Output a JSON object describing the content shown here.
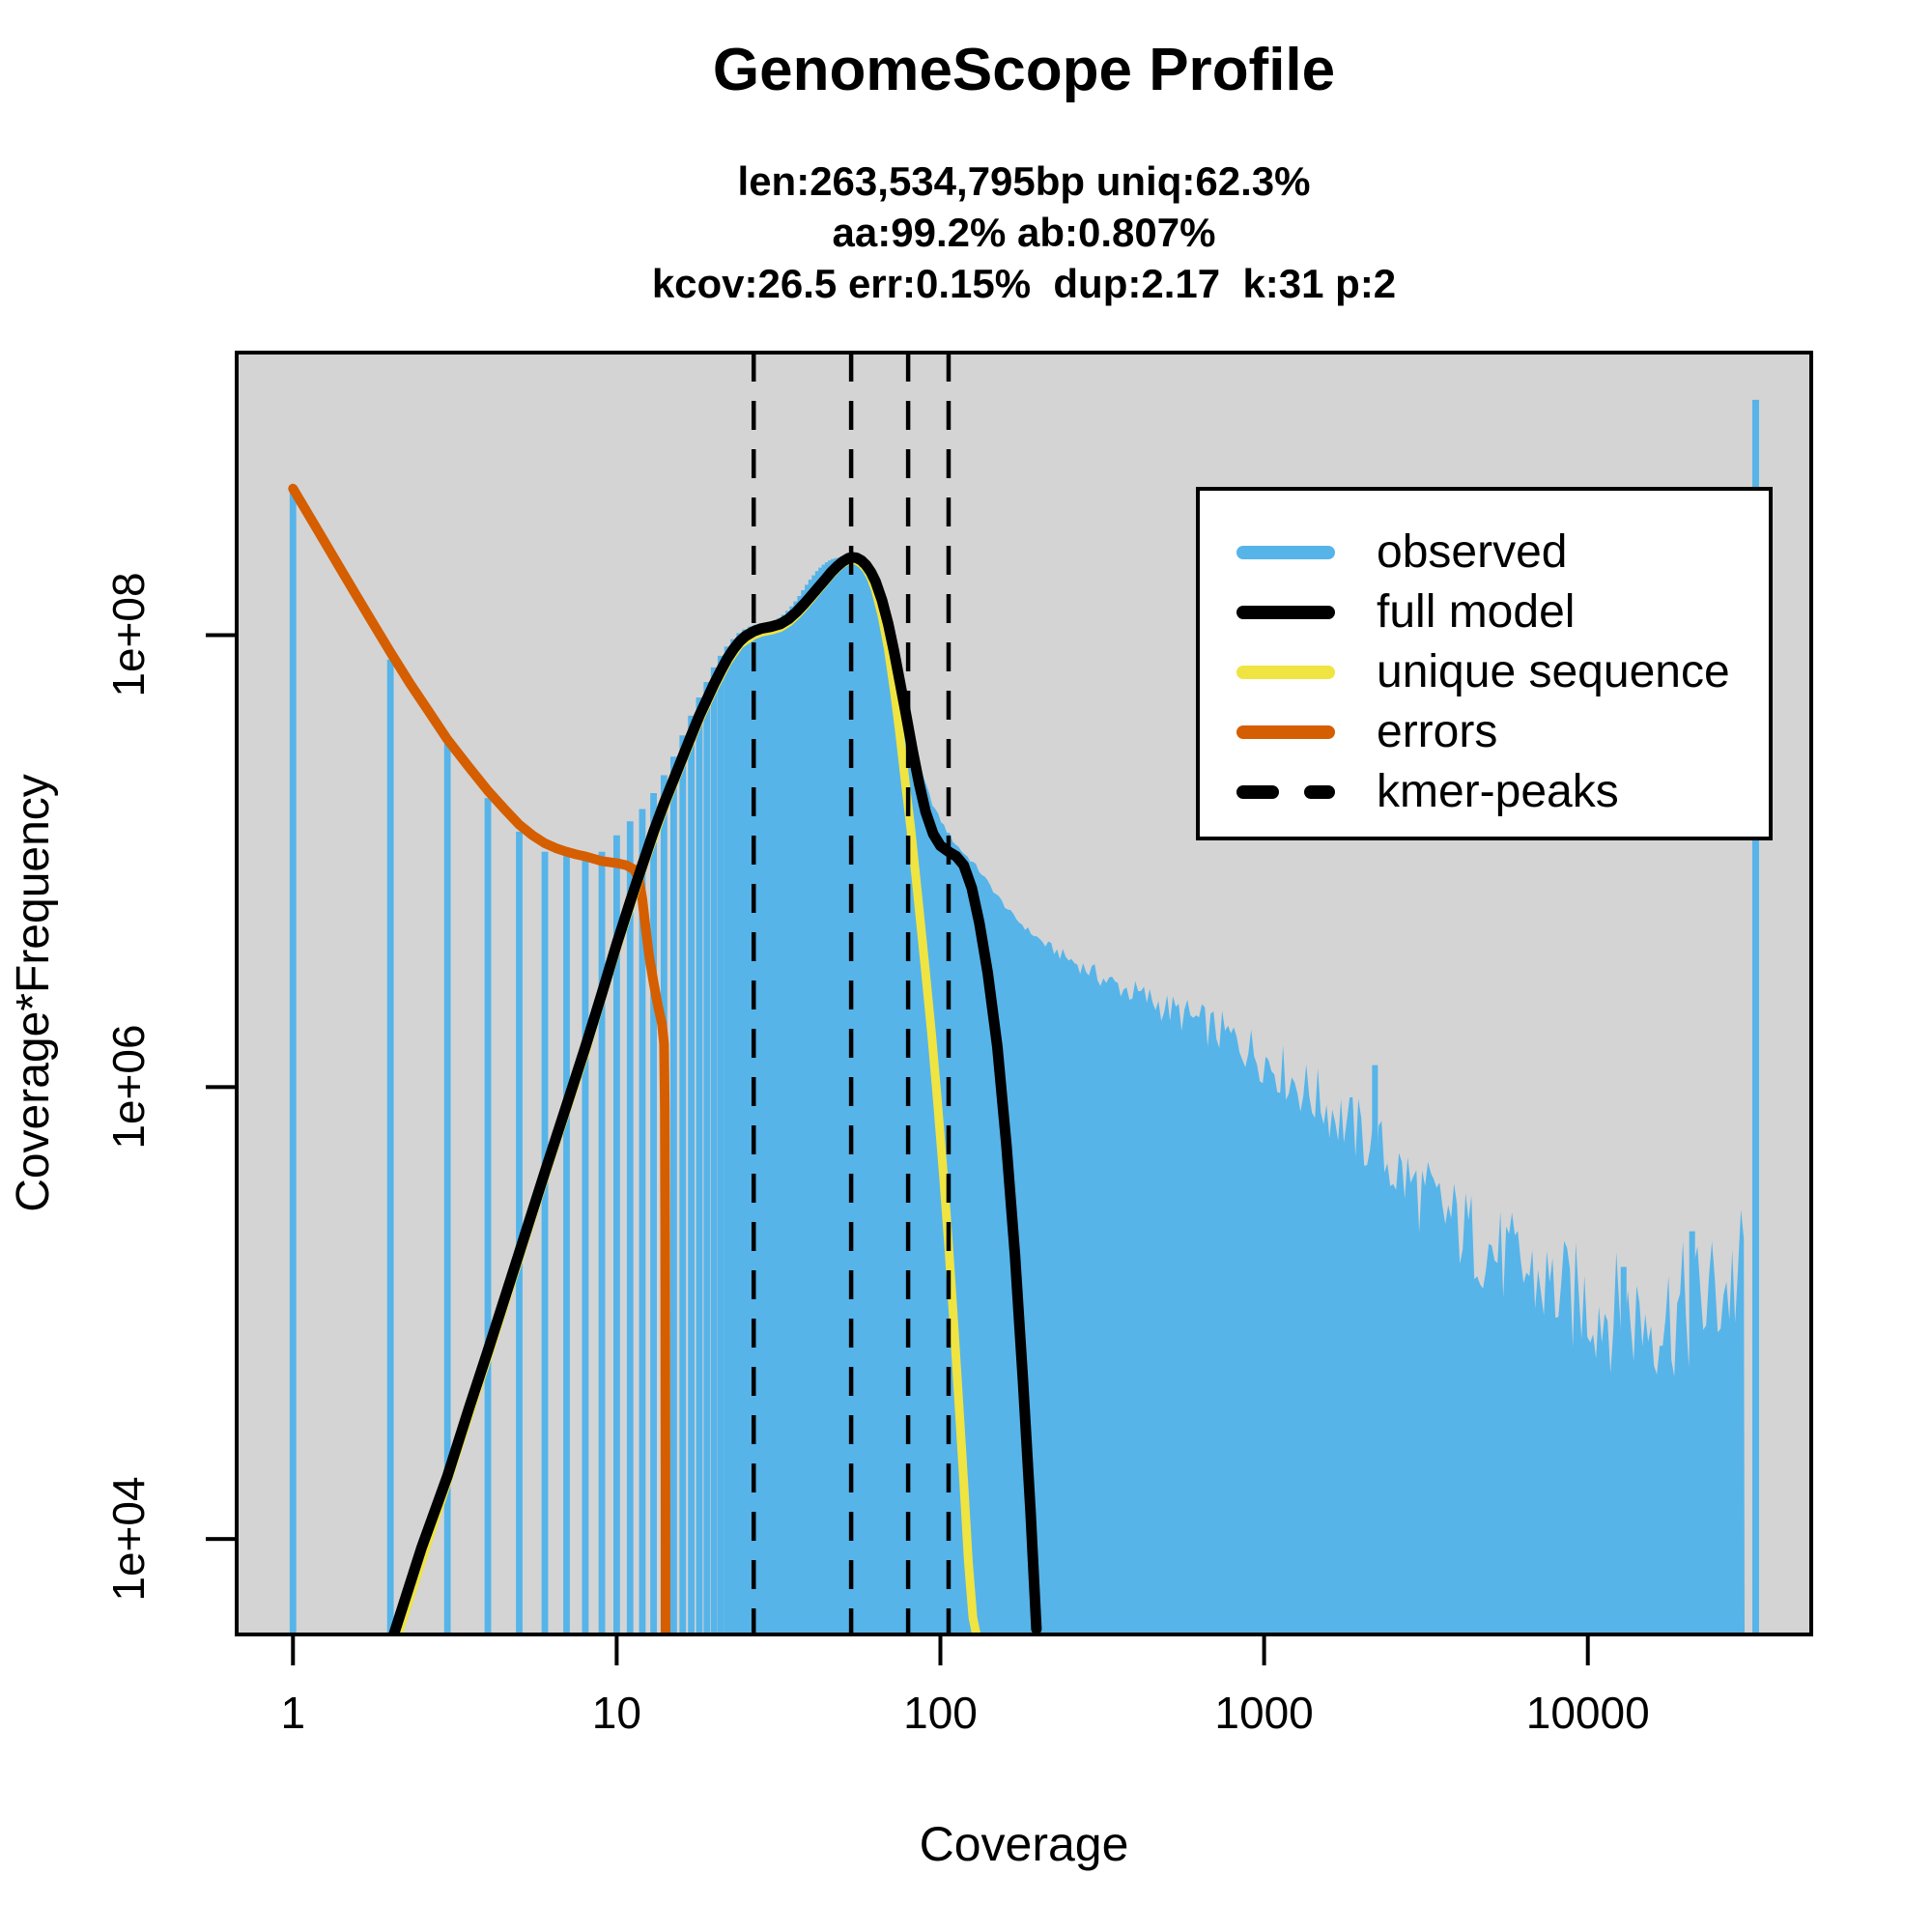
{
  "title": "GenomeScope Profile",
  "subtitle": {
    "line1": "len:263,534,795bp uniq:62.3%",
    "line2": "aa:99.2% ab:0.807%",
    "line3": "kcov:26.5 err:0.15%  dup:2.17  k:31 p:2"
  },
  "stats": {
    "len_bp": "263,534,795",
    "uniq_pct": 62.3,
    "aa_pct": 99.2,
    "ab_pct": 0.807,
    "kcov": 26.5,
    "err_pct": 0.15,
    "dup": 2.17,
    "k": 31,
    "p": 2
  },
  "axes": {
    "x_label": "Coverage",
    "y_label": "Coverage*Frequency",
    "x_tick_values": [
      1,
      10,
      100,
      1000,
      10000
    ],
    "x_tick_labels": [
      "1",
      "10",
      "100",
      "1000",
      "10000"
    ],
    "y_tick_values": [
      10000.0,
      1000000.0,
      100000000.0
    ],
    "y_tick_labels": [
      "1e+04",
      "1e+06",
      "1e+08"
    ]
  },
  "legend": {
    "items": [
      {
        "label": "observed",
        "color": "#56B4E9",
        "dashed": false
      },
      {
        "label": "full model",
        "color": "#000000",
        "dashed": false
      },
      {
        "label": "unique sequence",
        "color": "#F0E442",
        "dashed": false
      },
      {
        "label": "errors",
        "color": "#D55E00",
        "dashed": false
      },
      {
        "label": "kmer-peaks",
        "color": "#000000",
        "dashed": true
      }
    ]
  },
  "colors": {
    "observed": "#56B4E9",
    "full_model": "#000000",
    "unique_sequence": "#F0E442",
    "errors": "#D55E00",
    "kmer_peaks": "#000000",
    "plot_background": "#D4D4D4",
    "page_background": "#FFFFFF"
  },
  "chart_data": {
    "type": "bar",
    "title": "GenomeScope Profile",
    "xlabel": "Coverage",
    "ylabel": "Coverage*Frequency",
    "xscale": "log",
    "yscale": "log",
    "xlim": [
      0.67,
      49000
    ],
    "ylim": [
      3780,
      1780000000.0
    ],
    "grid": false,
    "legend_position": "top-right",
    "kmer_peaks": [
      26.5,
      53,
      79.5,
      106
    ],
    "observed_bars": {
      "cov_start": 1,
      "values": [
        445000000.0,
        78000000.0,
        33000000.0,
        19000000.0,
        13500000.0,
        11000000.0,
        10500000.0,
        10500000.0,
        11000000.0,
        13000000.0,
        15000000.0,
        17000000.0,
        20000000.0,
        24000000.0,
        29000000.0,
        36000000.0,
        44000000.0,
        53000000.0,
        62000000.0,
        72000000.0,
        81000000.0,
        89000000.0,
        96000000.0,
        102000000.0,
        106000000.0,
        109000000.0,
        111000000.0,
        112000000.0,
        113000000.0,
        114000000.0,
        116000000.0,
        119000000.0,
        123000000.0,
        128000000.0,
        134000000.0,
        141000000.0,
        149000000.0,
        158000000.0,
        167000000.0,
        176000000.0,
        184000000.0,
        192000000.0,
        199000000.0,
        205000000.0,
        210000000.0,
        214000000.0,
        217000000.0,
        219000000.0,
        220000000.0,
        220000000.0,
        220000000.0,
        219000000.0,
        218000000.0,
        216000000.0,
        213000000.0,
        209000000.0,
        204000000.0,
        198000000.0,
        191000000.0,
        184000000.0
      ]
    },
    "observed_tail": [
      [
        60,
        184000000.0
      ],
      [
        62,
        165000000.0
      ],
      [
        64,
        145000000.0
      ],
      [
        66,
        125000000.0
      ],
      [
        68,
        105000000.0
      ],
      [
        70,
        88000000.0
      ],
      [
        73,
        66000000.0
      ],
      [
        76,
        50000000.0
      ],
      [
        80,
        38000000.0
      ],
      [
        84,
        30000000.0
      ],
      [
        88,
        24000000.0
      ],
      [
        93,
        19000000.0
      ],
      [
        98,
        16000000.0
      ],
      [
        104,
        13800000.0
      ],
      [
        110,
        12200000.0
      ],
      [
        117,
        11000000.0
      ],
      [
        125,
        10000000.0
      ],
      [
        134,
        8800000.0
      ],
      [
        144,
        7600000.0
      ],
      [
        156,
        6500000.0
      ],
      [
        170,
        5600000.0
      ],
      [
        188,
        4900000.0
      ],
      [
        210,
        4300000.0
      ],
      [
        240,
        3800000.0
      ],
      [
        275,
        3400000.0
      ],
      [
        320,
        3000000.0
      ],
      [
        375,
        2700000.0
      ],
      [
        440,
        2450000.0
      ],
      [
        510,
        2200000.0
      ],
      [
        600,
        2000000.0
      ],
      [
        700,
        1800000.0
      ],
      [
        820,
        1600000.0
      ],
      [
        960,
        1400000.0
      ],
      [
        1120,
        1200000.0
      ],
      [
        1300,
        1000000.0
      ],
      [
        1520,
        850000.0
      ],
      [
        1780,
        700000.0
      ],
      [
        2080,
        580000.0
      ],
      [
        2440,
        460000.0
      ],
      [
        2850,
        370000.0
      ],
      [
        3340,
        300000.0
      ],
      [
        3900,
        250000.0
      ],
      [
        4560,
        210000.0
      ],
      [
        5340,
        180000.0
      ],
      [
        6250,
        155000.0
      ],
      [
        7300,
        135000.0
      ],
      [
        8550,
        120000.0
      ],
      [
        10000,
        110000.0
      ],
      [
        11700,
        102000.0
      ],
      [
        13700,
        97000.0
      ],
      [
        16000,
        95000.0
      ],
      [
        18700,
        100000.0
      ],
      [
        21900,
        110000.0
      ],
      [
        25600,
        125000.0
      ],
      [
        28500,
        140000.0
      ],
      [
        30500,
        155000.0
      ]
    ],
    "observed_spikes": [
      [
        2200,
        1250000.0
      ],
      [
        12900,
        160000.0
      ],
      [
        21000,
        230000.0
      ]
    ],
    "max_coverage_spike": {
      "cov": 33000,
      "value": 1100000000.0
    },
    "series": {
      "full_model": [
        [
          2.05,
          3800
        ],
        [
          2.5,
          9200
        ],
        [
          3,
          19000.0
        ],
        [
          3.5,
          38000.0
        ],
        [
          4,
          68000.0
        ],
        [
          5,
          185000.0
        ],
        [
          6,
          420000.0
        ],
        [
          7,
          830000.0
        ],
        [
          8,
          1500000.0
        ],
        [
          9,
          2600000.0
        ],
        [
          10,
          4300000.0
        ],
        [
          11,
          6600000.0
        ],
        [
          12,
          9600000.0
        ],
        [
          13,
          13500000.0
        ],
        [
          14,
          18000000.0
        ],
        [
          15,
          23000000.0
        ],
        [
          16,
          29000000.0
        ],
        [
          17,
          36000000.0
        ],
        [
          18,
          44000000.0
        ],
        [
          19,
          52000000.0
        ],
        [
          20,
          61000000.0
        ],
        [
          21,
          70000000.0
        ],
        [
          22,
          79000000.0
        ],
        [
          23,
          87000000.0
        ],
        [
          24,
          94000000.0
        ],
        [
          25,
          99000000.0
        ],
        [
          26.5,
          104000000.0
        ],
        [
          28,
          107000000.0
        ],
        [
          30,
          109000000.0
        ],
        [
          32,
          112000000.0
        ],
        [
          34,
          118000000.0
        ],
        [
          36,
          127000000.0
        ],
        [
          38,
          138000000.0
        ],
        [
          40,
          150000000.0
        ],
        [
          42,
          163000000.0
        ],
        [
          44,
          176000000.0
        ],
        [
          46,
          190000000.0
        ],
        [
          48,
          202000000.0
        ],
        [
          50,
          212000000.0
        ],
        [
          52,
          219000000.0
        ],
        [
          53.5,
          221000000.0
        ],
        [
          55,
          220000000.0
        ],
        [
          57,
          214000000.0
        ],
        [
          59,
          204000000.0
        ],
        [
          61,
          190000000.0
        ],
        [
          63,
          173000000.0
        ],
        [
          66,
          143000000.0
        ],
        [
          69,
          112000000.0
        ],
        [
          72,
          84000000.0
        ],
        [
          75,
          62000000.0
        ],
        [
          78,
          46000000.0
        ],
        [
          82,
          31000000.0
        ],
        [
          86,
          22000000.0
        ],
        [
          90,
          16500000.0
        ],
        [
          95,
          13200000.0
        ],
        [
          100,
          11700000.0
        ],
        [
          106,
          11000000.0
        ],
        [
          112,
          10500000.0
        ],
        [
          118,
          9600000.0
        ],
        [
          125,
          7600000.0
        ],
        [
          132,
          5300000.0
        ],
        [
          140,
          3200000.0
        ],
        [
          150,
          1500000.0
        ],
        [
          160,
          550000.0
        ],
        [
          170,
          180000.0
        ],
        [
          180,
          50000.0
        ],
        [
          190,
          13000.0
        ],
        [
          198,
          4000
        ]
      ],
      "unique_sequence": [
        [
          2.1,
          3700
        ],
        [
          3,
          18000.0
        ],
        [
          4,
          64000.0
        ],
        [
          5,
          175000.0
        ],
        [
          6,
          400000.0
        ],
        [
          7,
          790000.0
        ],
        [
          8,
          1420000.0
        ],
        [
          9,
          2500000.0
        ],
        [
          10,
          4100000.0
        ],
        [
          12,
          9200000.0
        ],
        [
          14,
          17200000.0
        ],
        [
          16,
          27800000.0
        ],
        [
          18,
          42000000.0
        ],
        [
          20,
          58500000.0
        ],
        [
          22,
          76000000.0
        ],
        [
          24,
          91000000.0
        ],
        [
          26.5,
          100000000.0
        ],
        [
          28,
          103000000.0
        ],
        [
          30,
          105000000.0
        ],
        [
          32,
          108000000.0
        ],
        [
          34,
          114000000.0
        ],
        [
          36,
          123000000.0
        ],
        [
          38,
          134000000.0
        ],
        [
          40,
          146000000.0
        ],
        [
          42,
          159000000.0
        ],
        [
          44,
          172000000.0
        ],
        [
          46,
          186000000.0
        ],
        [
          48,
          198000000.0
        ],
        [
          50,
          208000000.0
        ],
        [
          52,
          214000000.0
        ],
        [
          53.5,
          216000000.0
        ],
        [
          55,
          214000000.0
        ],
        [
          57,
          207000000.0
        ],
        [
          59,
          196000000.0
        ],
        [
          61,
          180000000.0
        ],
        [
          63,
          158000000.0
        ],
        [
          66,
          122000000.0
        ],
        [
          69,
          87000000.0
        ],
        [
          72,
          57000000.0
        ],
        [
          75,
          36000000.0
        ],
        [
          78,
          22000000.0
        ],
        [
          81,
          14000000.0
        ],
        [
          84,
          8500000.0
        ],
        [
          87,
          5200000.0
        ],
        [
          90,
          3200000.0
        ],
        [
          94,
          1700000.0
        ],
        [
          98,
          850000.0
        ],
        [
          102,
          420000.0
        ],
        [
          106,
          200000.0
        ],
        [
          110,
          90000.0
        ],
        [
          114,
          40000.0
        ],
        [
          118,
          18000.0
        ],
        [
          122,
          8000
        ],
        [
          126,
          4500
        ],
        [
          129,
          3800
        ]
      ],
      "errors": [
        [
          1,
          445000000.0
        ],
        [
          1.2,
          287000000.0
        ],
        [
          1.4,
          197000000.0
        ],
        [
          1.6,
          143000000.0
        ],
        [
          1.8,
          108000000.0
        ],
        [
          2,
          84000000.0
        ],
        [
          2.3,
          61000000.0
        ],
        [
          2.6,
          47000000.0
        ],
        [
          3,
          34500000.0
        ],
        [
          3.5,
          26000000.0
        ],
        [
          4,
          20500000.0
        ],
        [
          4.5,
          17000000.0
        ],
        [
          5,
          14500000.0
        ],
        [
          5.5,
          13000000.0
        ],
        [
          6,
          12000000.0
        ],
        [
          6.5,
          11400000.0
        ],
        [
          7,
          11000000.0
        ],
        [
          7.5,
          10700000.0
        ],
        [
          8,
          10500000.0
        ],
        [
          9,
          10000000.0
        ],
        [
          10,
          9800000.0
        ],
        [
          10.7,
          9600000.0
        ],
        [
          11.3,
          9200000.0
        ],
        [
          11.7,
          8400000.0
        ],
        [
          12,
          6800000.0
        ],
        [
          12.3,
          5000000.0
        ],
        [
          12.6,
          3800000.0
        ],
        [
          13,
          2900000.0
        ],
        [
          13.4,
          2300000.0
        ],
        [
          13.8,
          1900000.0
        ],
        [
          14,
          1550000.0
        ],
        [
          14.08,
          800000.0
        ],
        [
          14.12,
          200000.0
        ],
        [
          14.15,
          20000.0
        ],
        [
          14.16,
          3800
        ]
      ]
    }
  }
}
